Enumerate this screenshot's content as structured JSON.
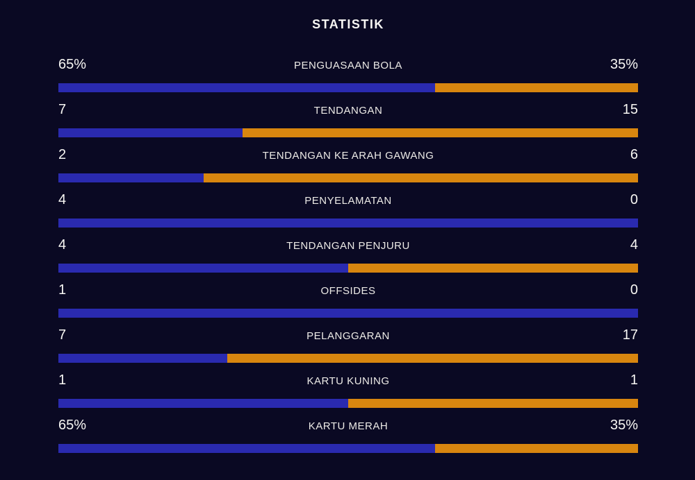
{
  "title": "STATISTIK",
  "colors": {
    "background": "#0a0923",
    "home_bar": "#2a2aaf",
    "away_bar": "#d8860f",
    "text": "#f7f6f3"
  },
  "rows": [
    {
      "label": "PENGUASAAN BOLA",
      "home": "65%",
      "away": "35%",
      "home_pct": 65
    },
    {
      "label": "TENDANGAN",
      "home": "7",
      "away": "15",
      "home_pct": 31.82
    },
    {
      "label": "TENDANGAN KE ARAH GAWANG",
      "home": "2",
      "away": "6",
      "home_pct": 25
    },
    {
      "label": "PENYELAMATAN",
      "home": "4",
      "away": "0",
      "home_pct": 100
    },
    {
      "label": "TENDANGAN PENJURU",
      "home": "4",
      "away": "4",
      "home_pct": 50
    },
    {
      "label": "OFFSIDES",
      "home": "1",
      "away": "0",
      "home_pct": 100
    },
    {
      "label": "PELANGGARAN",
      "home": "7",
      "away": "17",
      "home_pct": 29.17
    },
    {
      "label": "KARTU KUNING",
      "home": "1",
      "away": "1",
      "home_pct": 50
    },
    {
      "label": "KARTU MERAH",
      "home": "65%",
      "away": "35%",
      "home_pct": 65
    }
  ],
  "chart_data": {
    "type": "bar",
    "orientation": "horizontal-paired",
    "title": "STATISTIK",
    "categories": [
      "PENGUASAAN BOLA",
      "TENDANGAN",
      "TENDANGAN KE ARAH GAWANG",
      "PENYELAMATAN",
      "TENDANGAN PENJURU",
      "OFFSIDES",
      "PELANGGARAN",
      "KARTU KUNING",
      "KARTU MERAH"
    ],
    "series": [
      {
        "name": "home",
        "color": "#2a2aaf",
        "values": [
          "65%",
          "7",
          "2",
          "4",
          "4",
          "1",
          "7",
          "1",
          "65%"
        ]
      },
      {
        "name": "away",
        "color": "#d8860f",
        "values": [
          "35%",
          "15",
          "6",
          "0",
          "4",
          "0",
          "17",
          "1",
          "35%"
        ]
      }
    ],
    "bar_home_fraction_pct": [
      65,
      31.82,
      25,
      100,
      50,
      100,
      29.17,
      50,
      65
    ],
    "legend": "none",
    "grid": false
  }
}
